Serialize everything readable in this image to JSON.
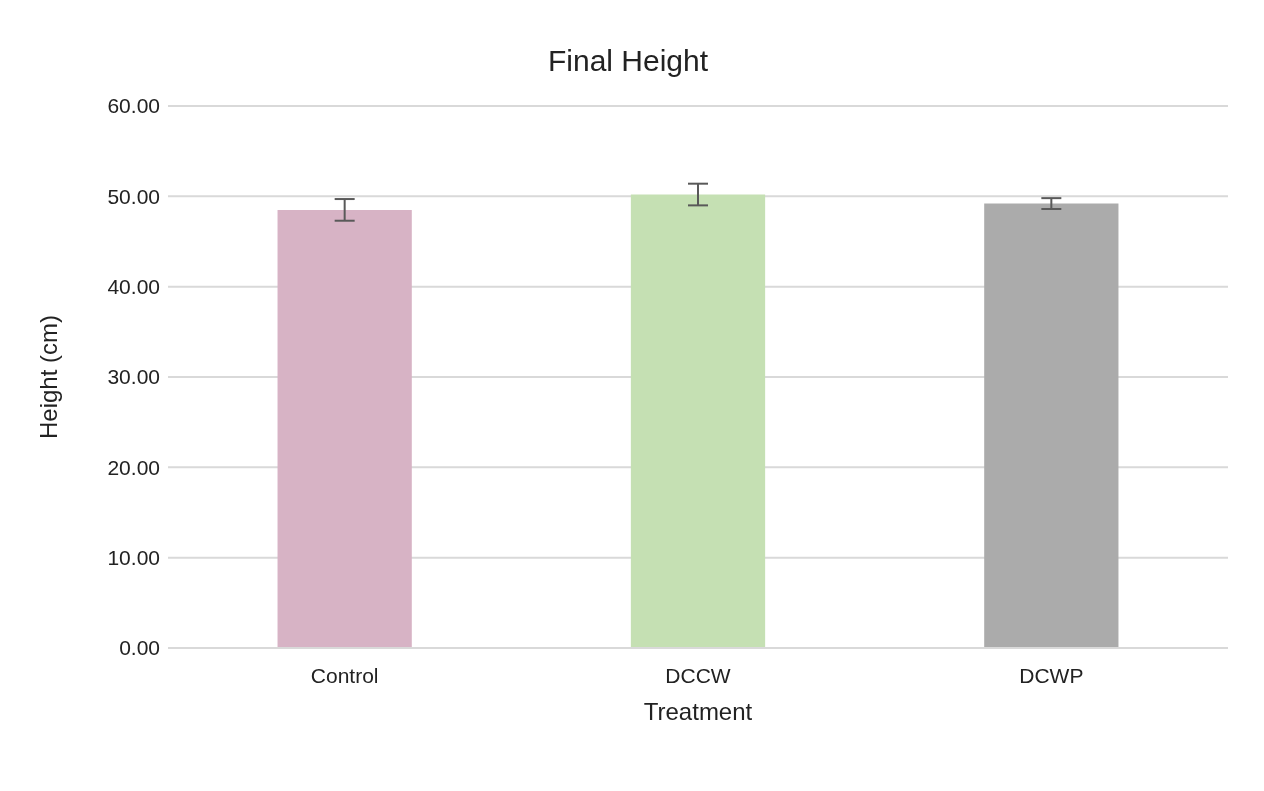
{
  "chart_data": {
    "type": "bar",
    "title": "Final Height",
    "xlabel": "Treatment",
    "ylabel": "Height (cm)",
    "categories": [
      "Control",
      "DCCW",
      "DCWP"
    ],
    "values": [
      48.5,
      50.2,
      49.2
    ],
    "colors": [
      "#d7b3c5",
      "#c5e0b3",
      "#ababab"
    ],
    "errors": [
      1.2,
      1.2,
      0.6
    ],
    "ylim": [
      0,
      60
    ],
    "yticks": [
      {
        "value": 0,
        "label": "0.00"
      },
      {
        "value": 10,
        "label": "10.00"
      },
      {
        "value": 20,
        "label": "20.00"
      },
      {
        "value": 30,
        "label": "30.00"
      },
      {
        "value": 40,
        "label": "40.00"
      },
      {
        "value": 50,
        "label": "50.00"
      },
      {
        "value": 60,
        "label": "60.00"
      }
    ],
    "grid": "y"
  }
}
